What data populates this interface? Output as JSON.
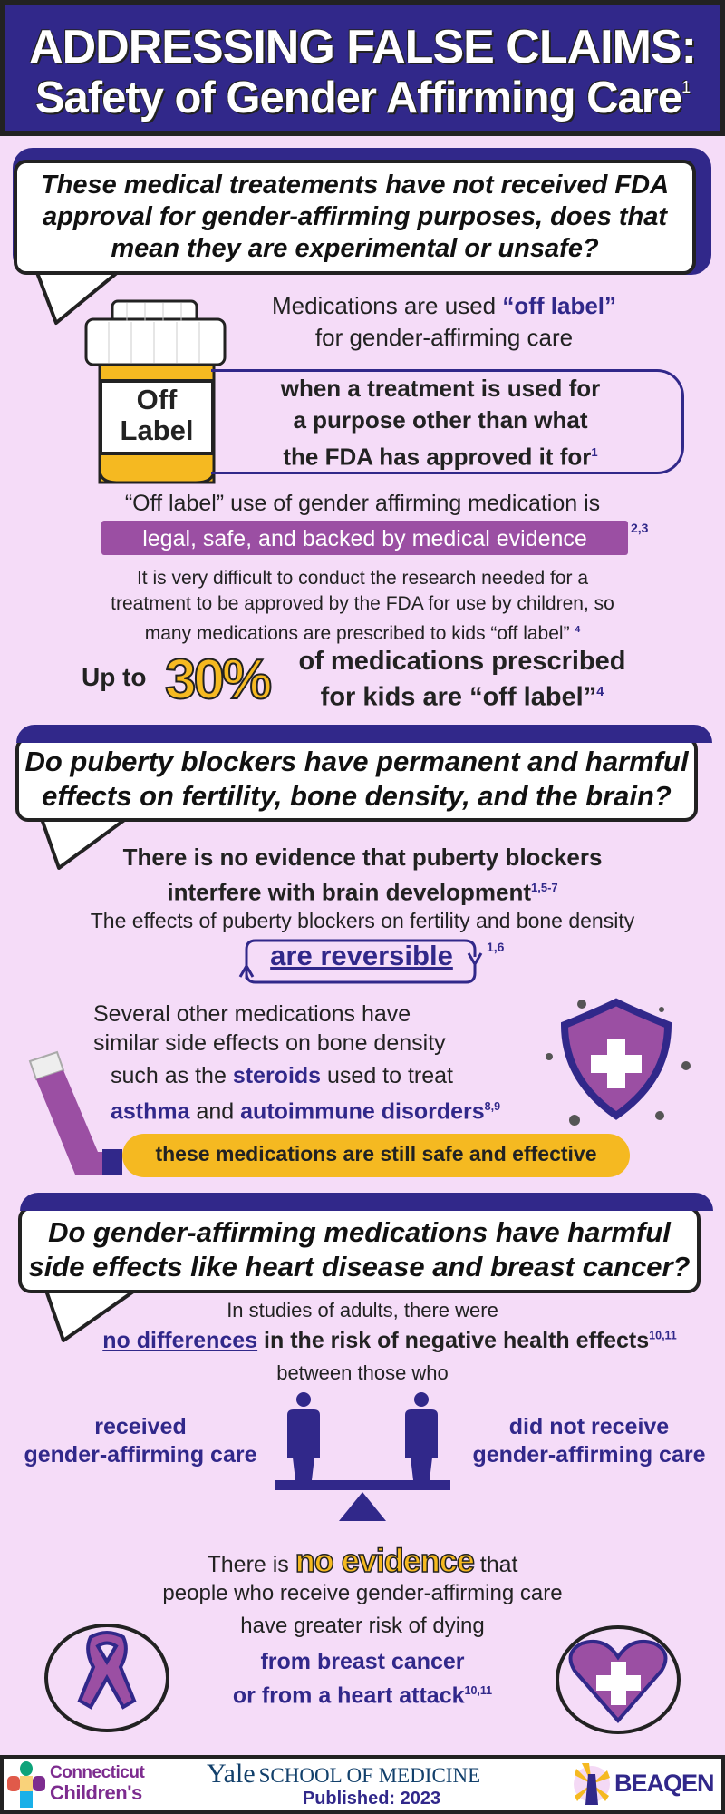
{
  "header": {
    "title_line1": "ADDRESSING FALSE CLAIMS:",
    "title_line2": "Safety of Gender Affirming Care",
    "title_ref": "1"
  },
  "colors": {
    "navy": "#31288a",
    "purple": "#9b4fa3",
    "yellow": "#f5b921",
    "background": "#f5dcf8"
  },
  "section1": {
    "question": "These medical treatements have not received FDA approval for gender-affirming purposes, does that mean they are experimental or unsafe?",
    "bottle_label_1": "Off",
    "bottle_label_2": "Label",
    "med_pre": "Medications are used ",
    "med_em": "“off label”",
    "med_post": "for gender-affirming care",
    "definition_1": "when a treatment is used for",
    "definition_2": "a purpose other than what",
    "definition_3": "the FDA has approved it for",
    "definition_ref": "1",
    "legal_pre": "“Off label” use of gender affirming medication is",
    "legal_highlight": "legal, safe, and backed by medical evidence",
    "legal_ref": "2,3",
    "research_1": "It is very difficult to conduct the research needed for a",
    "research_2": "treatment to be approved by the FDA for use by children, so",
    "research_3": "many medications are prescribed to kids “off label”",
    "research_ref": "4",
    "stat_pre": "Up to",
    "stat_value": "30%",
    "stat_post_1": "of medications prescribed",
    "stat_post_2": "for kids are “off label”",
    "stat_ref": "4"
  },
  "section2": {
    "question": "Do puberty blockers have permanent and harmful effects on fertility, bone density, and the brain?",
    "brain_1": "There is no evidence that puberty blockers",
    "brain_2": "interfere with brain development",
    "brain_ref": "1,5-7",
    "effects": "The effects of puberty blockers on fertility and bone density",
    "reversible": "are reversible",
    "reversible_ref": "1,6",
    "other_1": "Several other medications have",
    "other_2": "similar side effects on bone density",
    "steroids_pre": "such as the ",
    "steroids": "steroids",
    "steroids_post": " used to treat",
    "asthma": "asthma",
    "and": " and ",
    "autoimmune": "autoimmune disorders",
    "steroids_ref": "8,9",
    "safe": "these medications are still safe and effective"
  },
  "section3": {
    "question": "Do gender-affirming medications have harmful side effects like heart disease and breast cancer?",
    "studies": "In studies of adults, there were",
    "no_diff": "no differences",
    "risk": " in the risk of negative health effects",
    "risk_ref": "10,11",
    "between": "between those who",
    "received_1": "received",
    "received_2": "gender-affirming care",
    "not_received_1": "did not receive",
    "not_received_2": "gender-affirming care",
    "no_ev_pre": "There is ",
    "no_ev": "no evidence",
    "no_ev_post": " that",
    "people": "people who receive gender-affirming care",
    "greater": "have greater risk of dying",
    "cause_1": "from breast cancer",
    "cause_2": "or from a heart attack",
    "cause_ref": "10,11"
  },
  "footer": {
    "logo1_line1": "Connecticut",
    "logo1_line2": "Children's",
    "yale": "Yale",
    "yale_school": "SCHOOL OF MEDICINE",
    "published": "Published: 2023",
    "beaqen": "BEAQEN"
  }
}
